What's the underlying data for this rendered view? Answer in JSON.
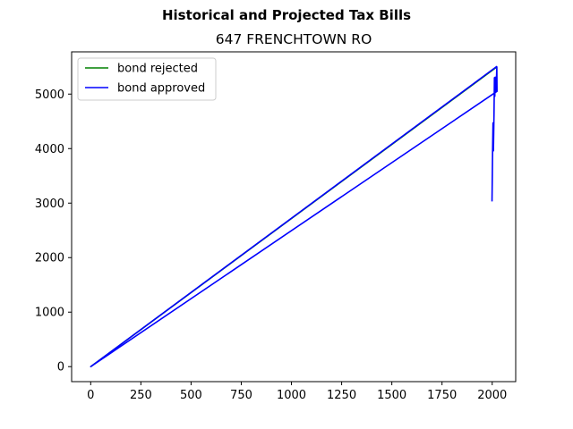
{
  "chart_data": {
    "type": "line",
    "suptitle": "Historical and Projected Tax Bills",
    "title": "647 FRENCHTOWN RO",
    "xlabel": "",
    "ylabel": "",
    "xlim": [
      -95,
      2117
    ],
    "ylim": [
      -275,
      5775
    ],
    "xticks": [
      0,
      250,
      500,
      750,
      1000,
      1250,
      1500,
      1750,
      2000
    ],
    "yticks": [
      0,
      1000,
      2000,
      3000,
      4000,
      5000
    ],
    "legend_position": "upper left",
    "grid": false,
    "series": [
      {
        "name": "bond rejected",
        "color": "#008000",
        "x": [
          0,
          2024
        ],
        "y": [
          0,
          5500
        ]
      },
      {
        "name": "bond approved",
        "color": "#0000ff",
        "x": [
          1999,
          2002,
          2004,
          2006,
          2009,
          2011,
          2013,
          2015,
          2017,
          2019,
          2021,
          2023,
          2024,
          0,
          2024
        ],
        "y": [
          3030,
          3980,
          4470,
          3960,
          4630,
          5300,
          4960,
          5310,
          5040,
          5100,
          5260,
          5500,
          5050,
          0,
          5510
        ]
      }
    ]
  }
}
